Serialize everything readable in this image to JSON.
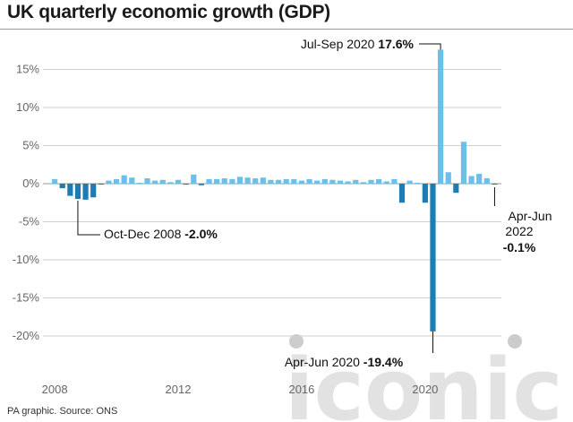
{
  "title": "UK quarterly economic growth (GDP)",
  "source": "PA graphic. Source: ONS",
  "watermark": "iconic",
  "colors": {
    "positive": "#6cbfe6",
    "negative": "#1b7db3",
    "highlight": "#1b7db3",
    "grid": "#cfcfcf",
    "axis_text": "#666666",
    "watermark": "#dcdcdc"
  },
  "chart_data": {
    "type": "bar",
    "ylim": [
      -25,
      20
    ],
    "yticks": [
      15,
      10,
      5,
      0,
      -5,
      -10,
      -15,
      -20
    ],
    "ytick_labels": [
      "15%",
      "10%",
      "5%",
      "0%",
      "-5%",
      "-10%",
      "-15%",
      "-20%"
    ],
    "xtick_labels": [
      "2008",
      "2012",
      "2016",
      "2020"
    ],
    "grid": true,
    "categories": [
      "Jan-Mar 2008",
      "Apr-Jun 2008",
      "Jul-Sep 2008",
      "Oct-Dec 2008",
      "Jan-Mar 2009",
      "Apr-Jun 2009",
      "Jul-Sep 2009",
      "Oct-Dec 2009",
      "Jan-Mar 2010",
      "Apr-Jun 2010",
      "Jul-Sep 2010",
      "Oct-Dec 2010",
      "Jan-Mar 2011",
      "Apr-Jun 2011",
      "Jul-Sep 2011",
      "Oct-Dec 2011",
      "Jan-Mar 2012",
      "Apr-Jun 2012",
      "Jul-Sep 2012",
      "Oct-Dec 2012",
      "Jan-Mar 2013",
      "Apr-Jun 2013",
      "Jul-Sep 2013",
      "Oct-Dec 2013",
      "Jan-Mar 2014",
      "Apr-Jun 2014",
      "Jul-Sep 2014",
      "Oct-Dec 2014",
      "Jan-Mar 2015",
      "Apr-Jun 2015",
      "Jul-Sep 2015",
      "Oct-Dec 2015",
      "Jan-Mar 2016",
      "Apr-Jun 2016",
      "Jul-Sep 2016",
      "Oct-Dec 2016",
      "Jan-Mar 2017",
      "Apr-Jun 2017",
      "Jul-Sep 2017",
      "Oct-Dec 2017",
      "Jan-Mar 2018",
      "Apr-Jun 2018",
      "Jul-Sep 2018",
      "Oct-Dec 2018",
      "Jan-Mar 2019",
      "Apr-Jun 2019",
      "Jul-Sep 2019",
      "Oct-Dec 2019",
      "Jan-Mar 2020",
      "Apr-Jun 2020",
      "Jul-Sep 2020",
      "Oct-Dec 2020",
      "Jan-Mar 2021",
      "Apr-Jun 2021",
      "Jul-Sep 2021",
      "Oct-Dec 2021",
      "Jan-Mar 2022",
      "Apr-Jun 2022"
    ],
    "values": [
      0.6,
      -0.6,
      -1.6,
      -2.0,
      -2.1,
      -1.8,
      -0.1,
      0.4,
      0.6,
      1.1,
      0.8,
      0.1,
      0.7,
      0.4,
      0.5,
      0.2,
      0.5,
      -0.1,
      1.2,
      -0.2,
      0.6,
      0.6,
      0.7,
      0.6,
      0.9,
      0.8,
      0.7,
      0.8,
      0.5,
      0.5,
      0.6,
      0.6,
      0.4,
      0.6,
      0.4,
      0.6,
      0.5,
      0.4,
      0.3,
      0.5,
      0.2,
      0.5,
      0.6,
      0.3,
      0.6,
      -2.5,
      0.4,
      0.0,
      -2.5,
      -19.4,
      17.6,
      1.5,
      -1.2,
      5.5,
      1.0,
      1.3,
      0.7,
      -0.1
    ],
    "annotations": [
      {
        "index": 3,
        "label": "Oct-Dec 2008",
        "value": "-2.0%"
      },
      {
        "index": 49,
        "label": "Apr-Jun 2020",
        "value": "-19.4%"
      },
      {
        "index": 50,
        "label": "Jul-Sep 2020",
        "value": "17.6%"
      },
      {
        "index": 57,
        "label_line1": "Apr-Jun",
        "label_line2": "2022",
        "value": "-0.1%"
      }
    ]
  }
}
